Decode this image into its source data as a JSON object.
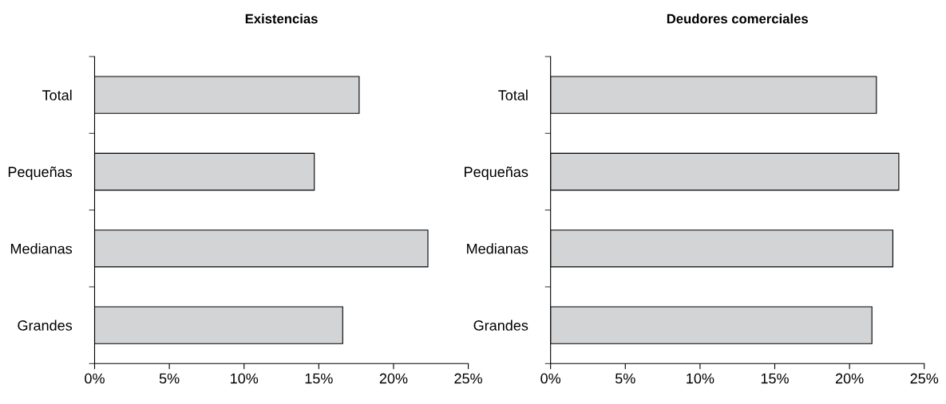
{
  "chart_data": [
    {
      "type": "bar",
      "orientation": "horizontal",
      "title": "Existencias",
      "categories": [
        "Total",
        "Pequeñas",
        "Medianas",
        "Grandes"
      ],
      "values": [
        17.7,
        14.7,
        22.3,
        16.6
      ],
      "color": "#d3d4d6",
      "xlim": [
        0,
        25
      ],
      "xticks": [
        {
          "value": 0,
          "label": "0%"
        },
        {
          "value": 5,
          "label": "5%"
        },
        {
          "value": 10,
          "label": "10%"
        },
        {
          "value": 15,
          "label": "15%"
        },
        {
          "value": 20,
          "label": "20%"
        },
        {
          "value": 25,
          "label": "25%"
        }
      ],
      "grid": false,
      "legend": false
    },
    {
      "type": "bar",
      "orientation": "horizontal",
      "title": "Deudores comerciales",
      "categories": [
        "Total",
        "Pequeñas",
        "Medianas",
        "Grandes"
      ],
      "values": [
        21.8,
        23.3,
        22.9,
        21.5
      ],
      "color": "#d3d4d6",
      "xlim": [
        0,
        25
      ],
      "xticks": [
        {
          "value": 0,
          "label": "0%"
        },
        {
          "value": 5,
          "label": "5%"
        },
        {
          "value": 10,
          "label": "10%"
        },
        {
          "value": 15,
          "label": "15%"
        },
        {
          "value": 20,
          "label": "20%"
        },
        {
          "value": 25,
          "label": "25%"
        }
      ],
      "grid": false,
      "legend": false
    }
  ]
}
